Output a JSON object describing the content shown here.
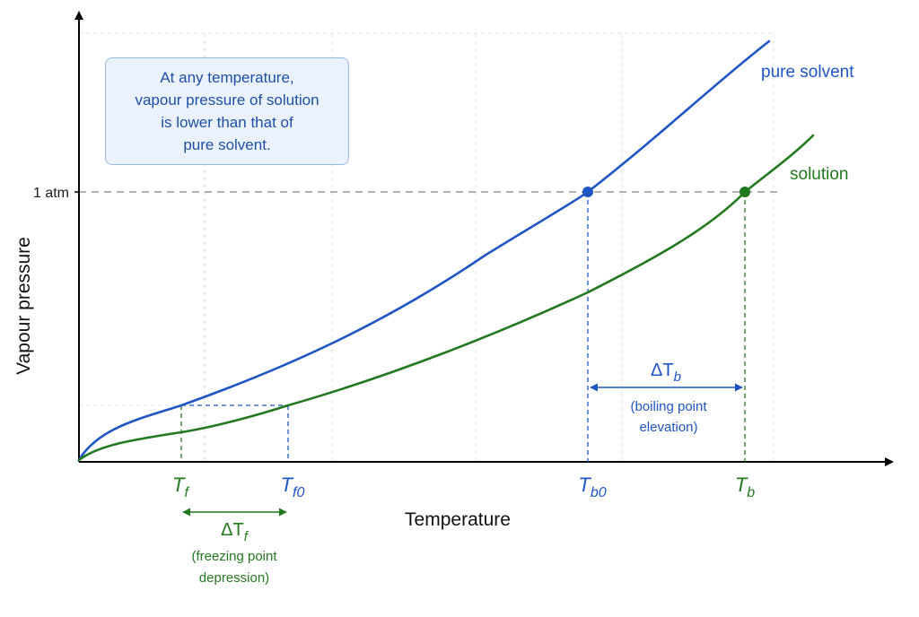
{
  "axes": {
    "x_label": "Temperature",
    "y_label": "Vapour pressure",
    "y_tick_label": "1 atm"
  },
  "note": {
    "lines": [
      "At any temperature,",
      "vapour pressure of solution",
      "is lower than that of",
      "pure solvent."
    ]
  },
  "curves": {
    "pure_label": "pure solvent",
    "solution_label": "solution"
  },
  "markers": {
    "tf": {
      "main": "T",
      "sub": "f"
    },
    "tf0": {
      "main": "T",
      "sub": "f0"
    },
    "tb0": {
      "main": "T",
      "sub": "b0"
    },
    "tb": {
      "main": "T",
      "sub": "b"
    }
  },
  "annotations": {
    "delta_tf": {
      "main": "ΔT",
      "sub": "f",
      "line1": "(freezing point",
      "line2": "depression)"
    },
    "delta_tb": {
      "main": "ΔT",
      "sub": "b",
      "line1": "(boiling point",
      "line2": "elevation)"
    }
  },
  "colors": {
    "pure": "#1f56c4",
    "solution": "#23791f",
    "grid": "#d9d9d9",
    "reference": "#9a9a9a",
    "axis": "#000000"
  }
}
